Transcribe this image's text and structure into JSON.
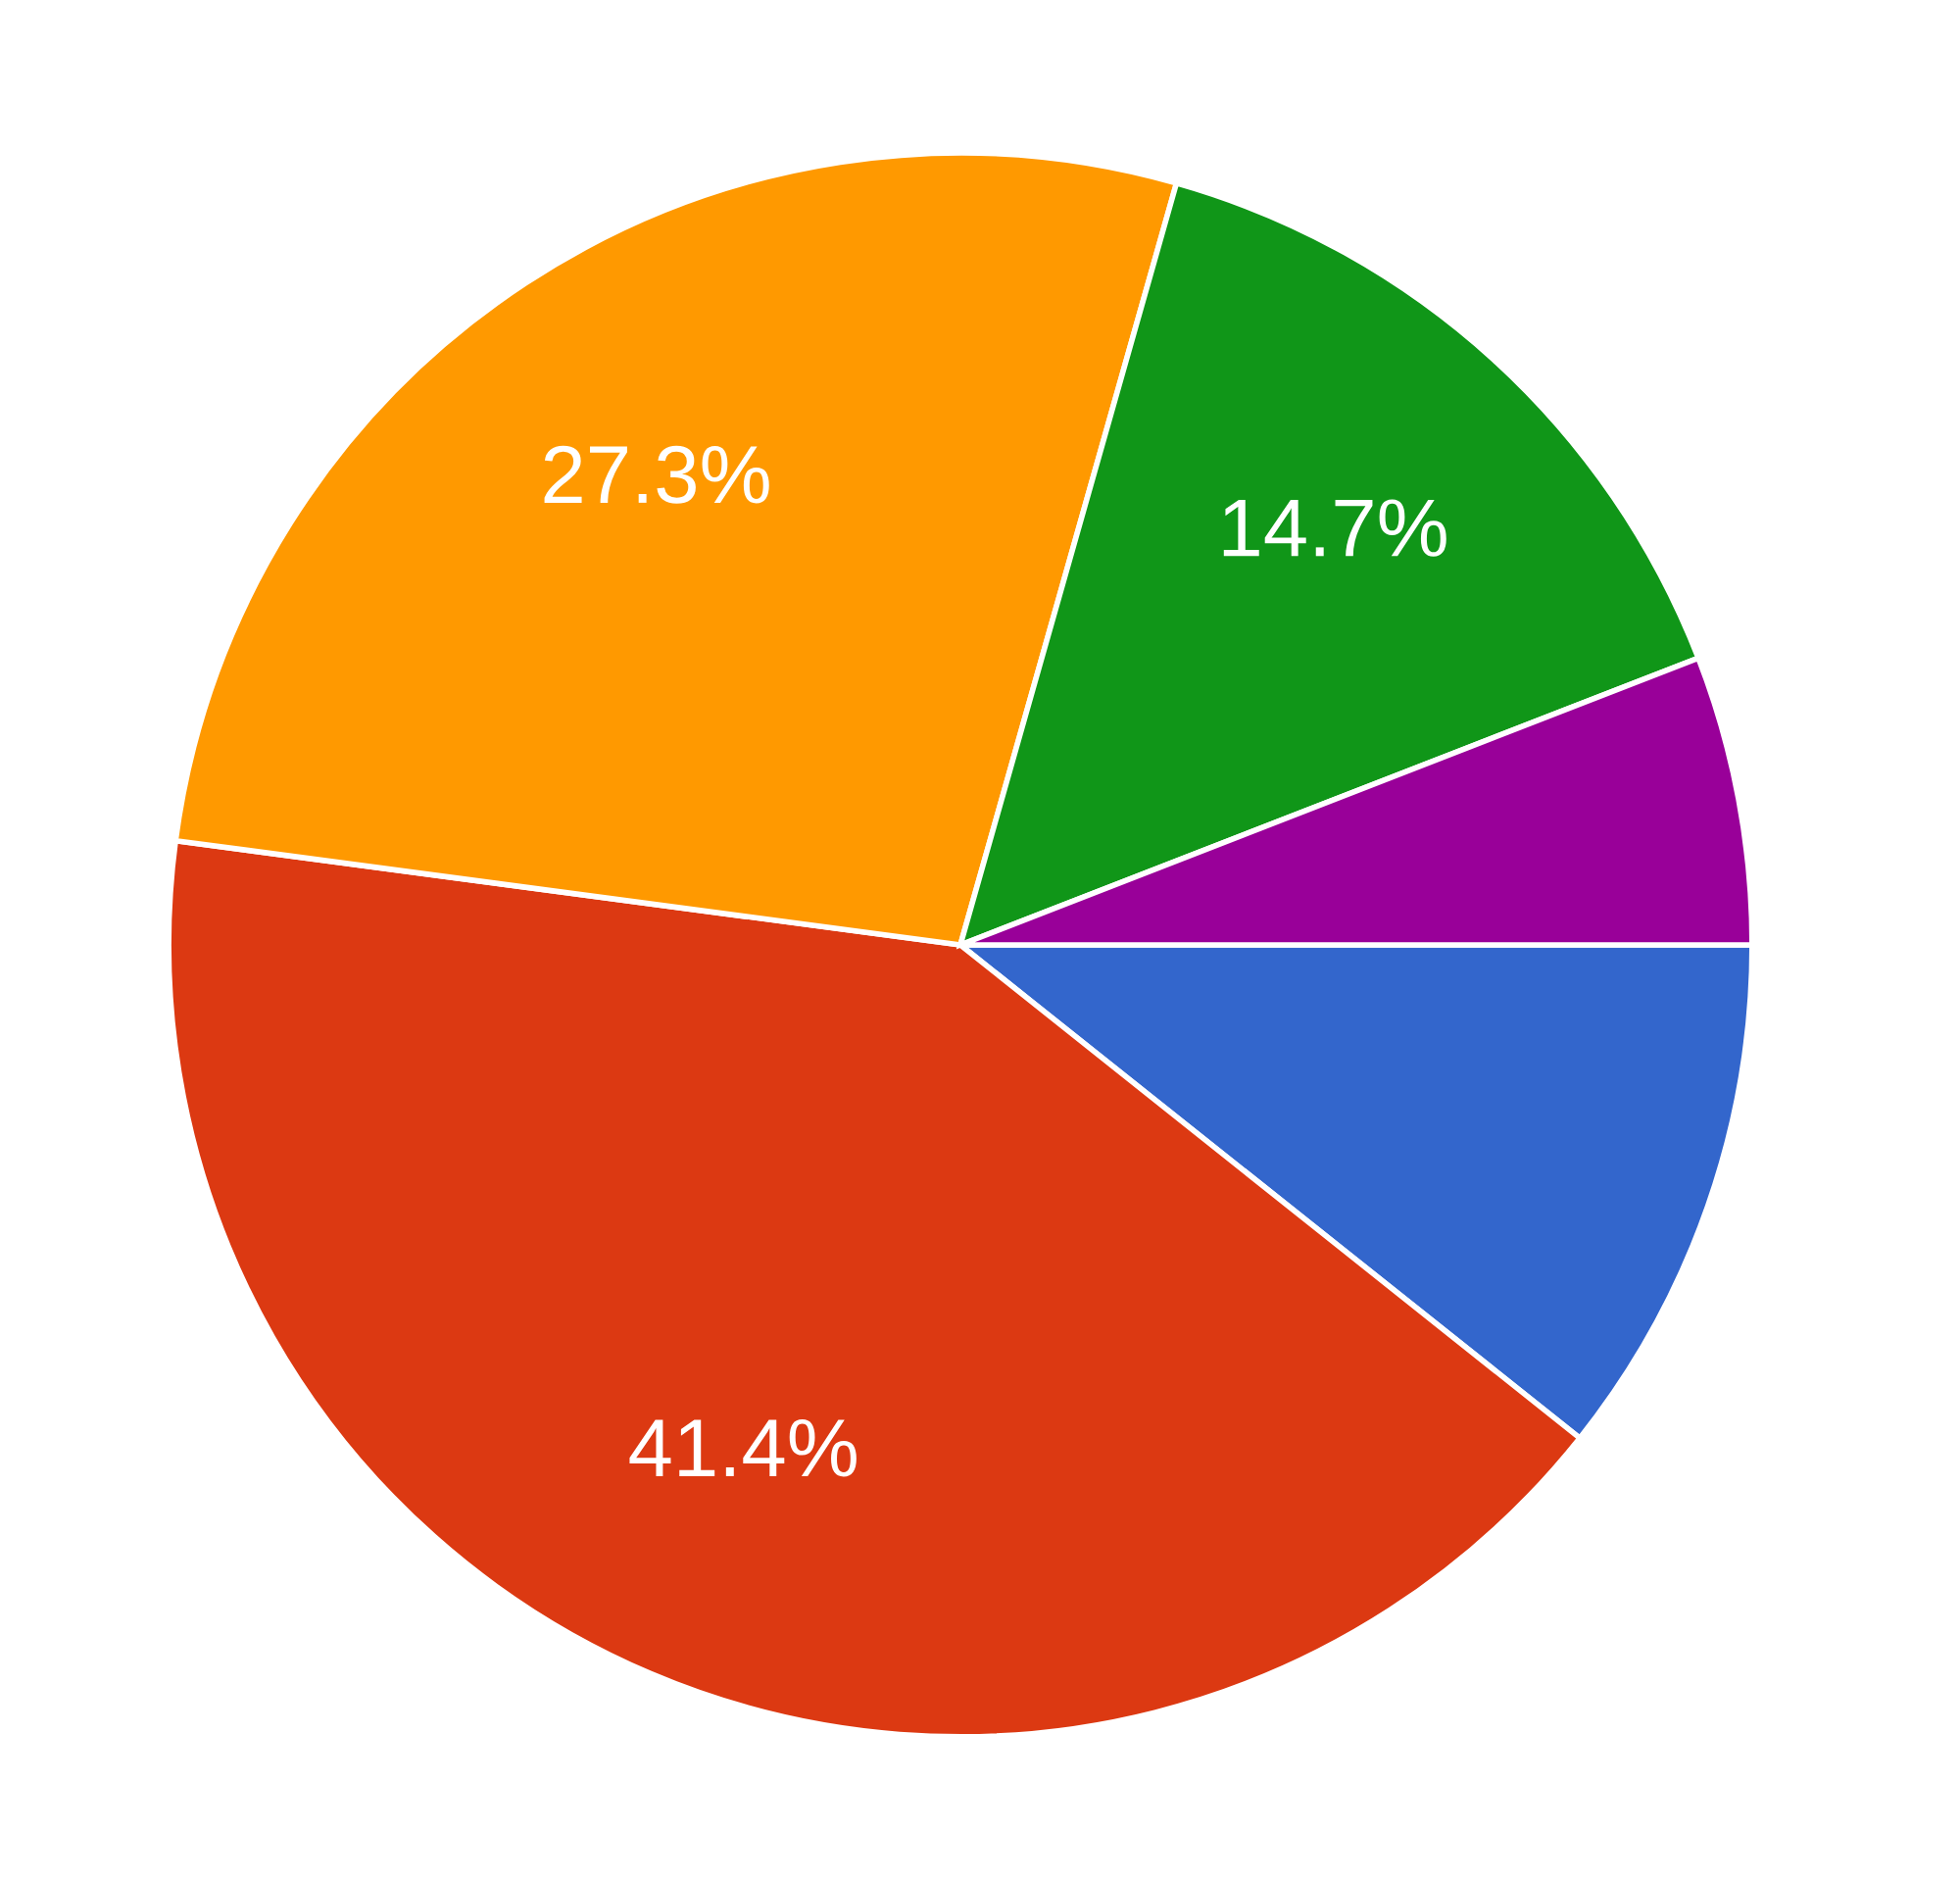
{
  "chart_data": {
    "type": "pie",
    "categories": [
      null,
      null,
      null,
      null,
      null
    ],
    "values": [
      10.7,
      41.4,
      27.3,
      14.7,
      5.9
    ],
    "colors": [
      "#3366cc",
      "#dc3912",
      "#ff9900",
      "#109618",
      "#990099"
    ],
    "value_labels": [
      null,
      "41.4%",
      "27.3%",
      "14.7%",
      null
    ]
  }
}
